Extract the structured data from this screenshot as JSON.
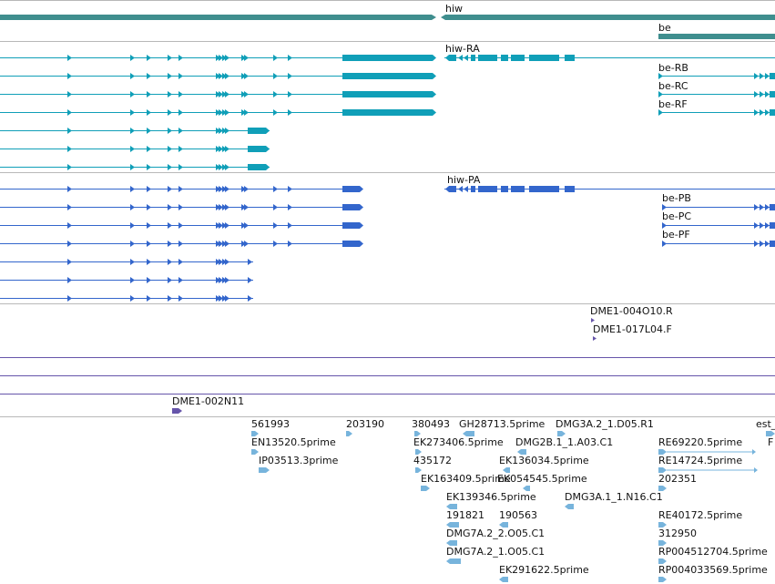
{
  "colors": {
    "gene": "#3f8e8e",
    "mrna": "#109fb8",
    "cds": "#3366cc",
    "clone": "#6655aa",
    "est": "#77b4dc",
    "separator": "#b8b8b8",
    "text": "#111111"
  },
  "tracks": [
    {
      "id": "gene",
      "features": [
        {
          "label": "hiw",
          "strand": "-"
        },
        {
          "label": "be",
          "strand": "+"
        }
      ]
    },
    {
      "id": "mrna",
      "features": [
        {
          "label": "hiw-RA",
          "strand": "-"
        },
        {
          "label": "be-RB",
          "strand": "+"
        },
        {
          "label": "be-RC",
          "strand": "+"
        },
        {
          "label": "be-RF",
          "strand": "+"
        }
      ]
    },
    {
      "id": "cds",
      "features": [
        {
          "label": "hiw-PA",
          "strand": "-"
        },
        {
          "label": "be-PB",
          "strand": "+"
        },
        {
          "label": "be-PC",
          "strand": "+"
        },
        {
          "label": "be-PF",
          "strand": "+"
        }
      ]
    },
    {
      "id": "clones",
      "features": [
        {
          "label": "DME1-004O10.R"
        },
        {
          "label": "DME1-017L04.F"
        },
        {
          "label": "DME1-002N11"
        }
      ]
    },
    {
      "id": "est",
      "features": [
        {
          "label": "561993"
        },
        {
          "label": "EN13520.5prime"
        },
        {
          "label": "IP03513.3prime"
        },
        {
          "label": "203190"
        },
        {
          "label": "380493"
        },
        {
          "label": "EK273406.5prime"
        },
        {
          "label": "435172"
        },
        {
          "label": "EK163409.5prime"
        },
        {
          "label": "GH28713.5prime"
        },
        {
          "label": "DMG2B.1_1.A03.C1"
        },
        {
          "label": "EK136034.5prime"
        },
        {
          "label": "EK054545.5prime"
        },
        {
          "label": "EK139346.5prime"
        },
        {
          "label": "191821"
        },
        {
          "label": "190563"
        },
        {
          "label": "DMG7A.2_2.O05.C1"
        },
        {
          "label": "DMG7A.2_1.O05.C1"
        },
        {
          "label": "EK291622.5prime"
        },
        {
          "label": "DMG3A.2_1.D05.R1"
        },
        {
          "label": "DMG3A.1_1.N16.C1"
        },
        {
          "label": "RE69220.5prime"
        },
        {
          "label": "RE14724.5prime"
        },
        {
          "label": "202351"
        },
        {
          "label": "RE40172.5prime"
        },
        {
          "label": "312950"
        },
        {
          "label": "RP004512704.5prime"
        },
        {
          "label": "RP004033569.5prime"
        },
        {
          "label": "est_"
        },
        {
          "label": "F"
        }
      ]
    }
  ]
}
